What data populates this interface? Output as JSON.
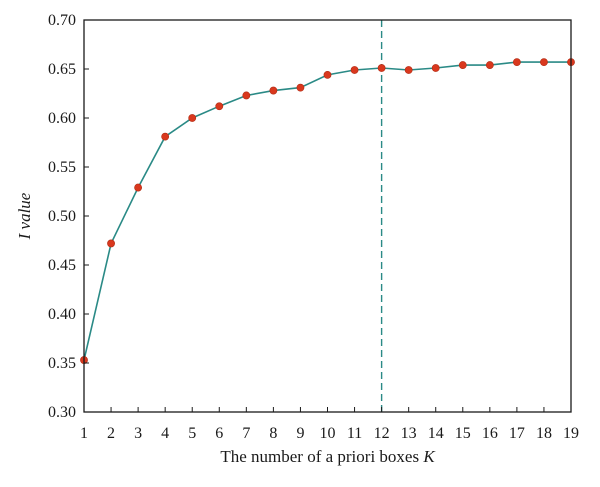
{
  "chart_data": {
    "type": "line",
    "xlabel_main": "The number of a priori boxes ",
    "xlabel_var": "K",
    "ylabel": "I value",
    "x": [
      1,
      2,
      3,
      4,
      5,
      6,
      7,
      8,
      9,
      10,
      11,
      12,
      13,
      14,
      15,
      16,
      17,
      18,
      19
    ],
    "y": [
      0.353,
      0.472,
      0.529,
      0.581,
      0.6,
      0.612,
      0.623,
      0.628,
      0.631,
      0.644,
      0.649,
      0.651,
      0.649,
      0.651,
      0.654,
      0.654,
      0.657,
      0.657,
      0.657
    ],
    "xlim": [
      1,
      19
    ],
    "ylim": [
      0.3,
      0.7
    ],
    "xticks": [
      1,
      2,
      3,
      4,
      5,
      6,
      7,
      8,
      9,
      10,
      11,
      12,
      13,
      14,
      15,
      16,
      17,
      18,
      19
    ],
    "yticks": [
      "0.30",
      "0.35",
      "0.40",
      "0.45",
      "0.50",
      "0.55",
      "0.60",
      "0.65",
      "0.70"
    ],
    "reference_line_x": 12,
    "colors": {
      "line": "#2a8a86",
      "marker": "#d9381e",
      "reference": "#2a8a86",
      "axis": "#1a1a1a"
    },
    "grid": false
  }
}
